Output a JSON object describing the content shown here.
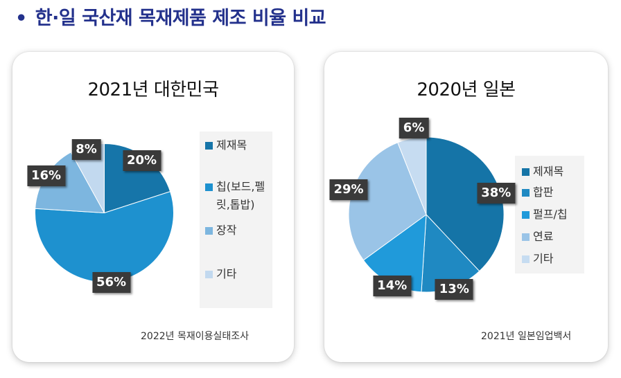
{
  "page_title": "한·일 국산재 목재제품 제조 비율 비교",
  "bullet": "•",
  "chart_data": [
    {
      "type": "pie",
      "title": "2021년 대한민국",
      "categories": [
        "제재목",
        "칩(보드,펠릿,톱밥)",
        "장작",
        "기타"
      ],
      "legend_lines": [
        [
          "제재목"
        ],
        [
          "칩(보드,펠",
          "릿,톱밥)"
        ],
        [
          "장작"
        ],
        [
          "기타"
        ]
      ],
      "values": [
        20,
        56,
        16,
        8
      ],
      "labels": [
        "20%",
        "56%",
        "16%",
        "8%"
      ],
      "colors": [
        "#1675a9",
        "#1e91cf",
        "#7db6df",
        "#c2d9ef"
      ],
      "legend_position": "right",
      "source": "2022년 목재이용실태조사"
    },
    {
      "type": "pie",
      "title": "2020년 일본",
      "categories": [
        "제재목",
        "합판",
        "펄프/칩",
        "연료",
        "기타"
      ],
      "legend_lines": [
        [
          "제재목"
        ],
        [
          "합판"
        ],
        [
          "펄프/칩"
        ],
        [
          "연료"
        ],
        [
          "기타"
        ]
      ],
      "values": [
        38,
        13,
        14,
        29,
        6
      ],
      "labels": [
        "38%",
        "13%",
        "14%",
        "29%",
        "6%"
      ],
      "colors": [
        "#1574a7",
        "#1f89c2",
        "#209ada",
        "#9ac4e7",
        "#c6dcf1"
      ],
      "legend_position": "right",
      "source": "2021년 일본임업백서"
    }
  ]
}
